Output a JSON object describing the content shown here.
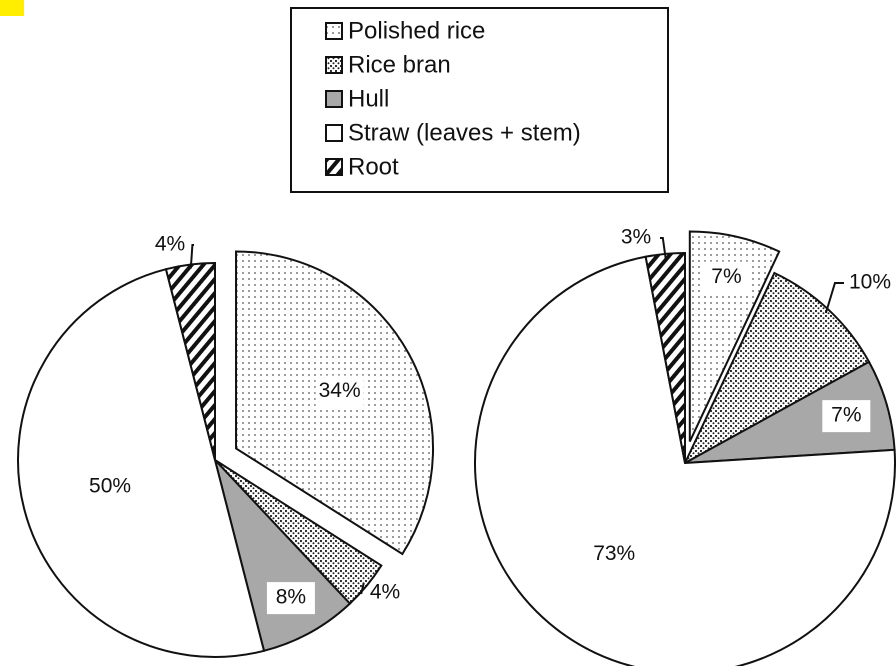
{
  "legend": {
    "labels": [
      "Polished rice",
      "Rice bran",
      "Hull",
      "Straw (leaves + stem)",
      "Root"
    ]
  },
  "chart_data": [
    {
      "type": "pie",
      "values": [
        34,
        4,
        8,
        50,
        4
      ],
      "value_labels": [
        "34%",
        "4%",
        "8%",
        "50%",
        "4%"
      ]
    },
    {
      "type": "pie",
      "values": [
        7,
        10,
        7,
        73,
        3
      ],
      "value_labels": [
        "7%",
        "10%",
        "7%",
        "73%",
        "3%"
      ]
    }
  ]
}
